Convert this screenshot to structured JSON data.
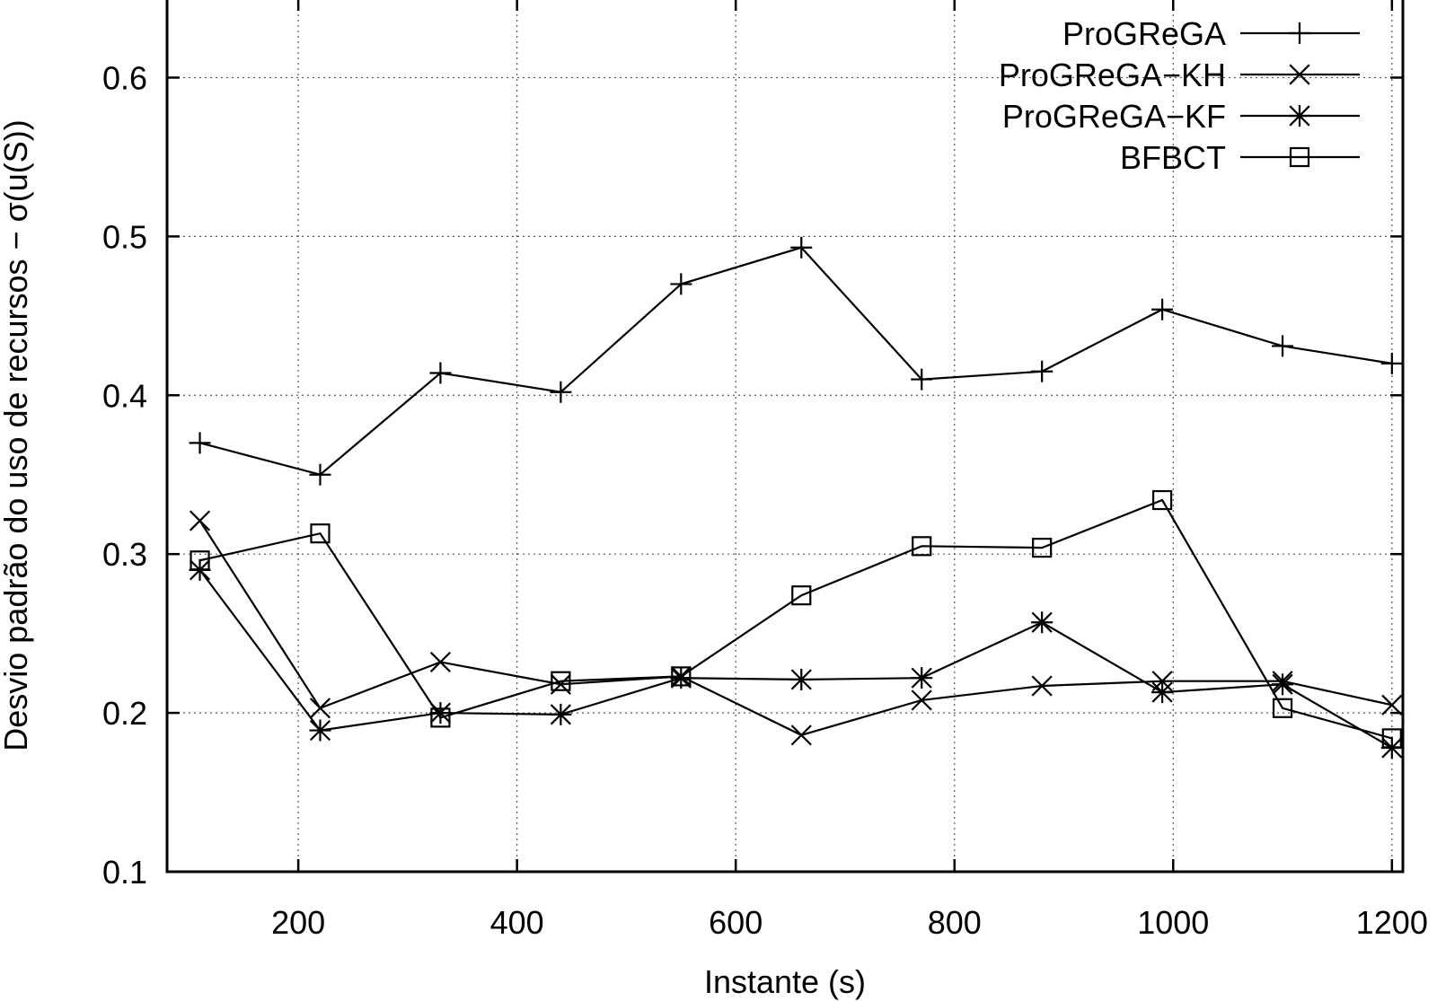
{
  "chart_data": {
    "type": "line",
    "xlabel": "Instante (s)",
    "ylabel": "Desvio padrão do uso de recursos − σ(u(S))",
    "xlim": [
      80,
      1210
    ],
    "ylim": [
      0.1,
      0.65
    ],
    "xticks": [
      200,
      400,
      600,
      800,
      1000,
      1200
    ],
    "yticks": [
      0.1,
      0.2,
      0.3,
      0.4,
      0.5,
      0.6
    ],
    "grid": true,
    "legend_position": "top-right",
    "x": [
      110,
      220,
      330,
      440,
      550,
      660,
      770,
      880,
      990,
      1100,
      1200
    ],
    "series": [
      {
        "name": "ProGReGA",
        "marker": "plus",
        "values": [
          0.37,
          0.35,
          0.414,
          0.402,
          0.47,
          0.493,
          0.41,
          0.415,
          0.454,
          0.431,
          0.42
        ]
      },
      {
        "name": "ProGReGA−KH",
        "marker": "cross",
        "values": [
          0.321,
          0.203,
          0.232,
          0.218,
          0.223,
          0.186,
          0.208,
          0.217,
          0.22,
          0.22,
          0.205
        ]
      },
      {
        "name": "ProGReGA−KF",
        "marker": "star",
        "values": [
          0.29,
          0.189,
          0.2,
          0.199,
          0.222,
          0.221,
          0.222,
          0.257,
          0.213,
          0.218,
          0.178
        ]
      },
      {
        "name": "BFBCT",
        "marker": "square",
        "values": [
          0.296,
          0.313,
          0.197,
          0.22,
          0.223,
          0.274,
          0.305,
          0.304,
          0.334,
          0.203,
          0.184
        ]
      }
    ]
  }
}
